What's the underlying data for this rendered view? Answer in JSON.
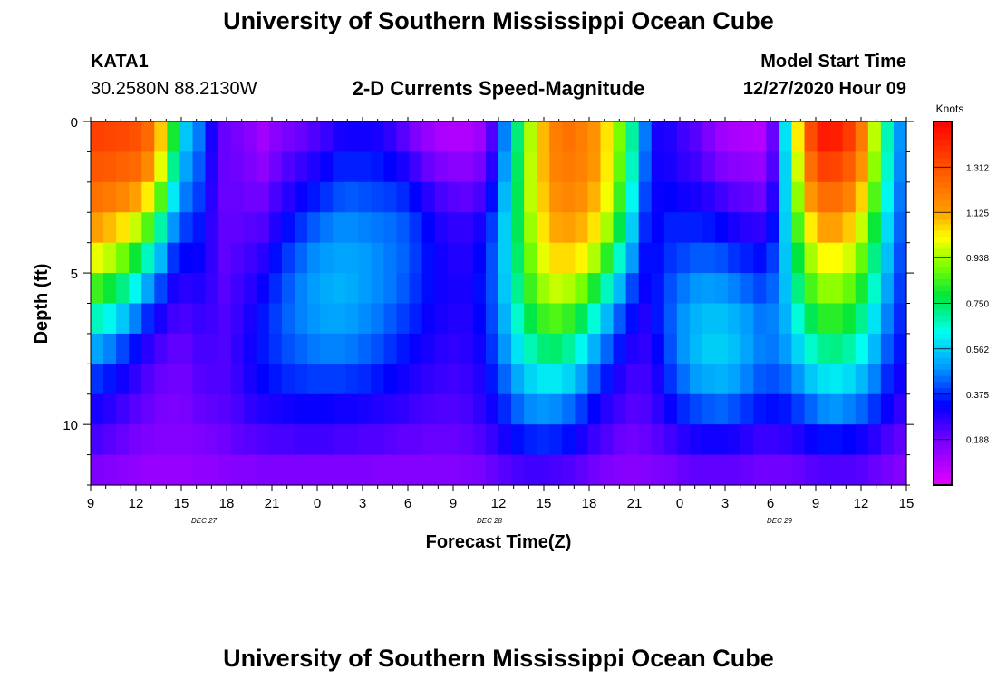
{
  "header": {
    "title": "University of Southern Mississippi Ocean Cube",
    "station_id": "KATA1",
    "station_coords": "30.2580N 88.2130W",
    "plot_title": "2-D Currents Speed-Magnitude",
    "model_label": "Model Start Time",
    "model_time": "12/27/2020 Hour 09"
  },
  "footer": {
    "title": "University of Southern Mississippi Ocean Cube"
  },
  "chart_data": {
    "type": "heatmap",
    "title": "2-D Currents Speed-Magnitude",
    "xlabel": "Forecast Time(Z)",
    "ylabel": "Depth (ft)",
    "colorbar_title": "Knots",
    "x_tick_labels": [
      "9",
      "12",
      "15",
      "18",
      "21",
      "0",
      "3",
      "6",
      "9",
      "12",
      "15",
      "18",
      "21",
      "0",
      "3",
      "6",
      "9",
      "12",
      "15"
    ],
    "x_date_labels": [
      {
        "text": "DEC  27",
        "at_tick": 2.5
      },
      {
        "text": "DEC  28",
        "at_tick": 8.8
      },
      {
        "text": "DEC  29",
        "at_tick": 15.2
      }
    ],
    "x_range_hours": [
      0,
      54
    ],
    "y_ticks": [
      0,
      5,
      10
    ],
    "ylim_ft": [
      0,
      12
    ],
    "colorbar_ticks": [
      "1.312",
      "1.125",
      "0.938",
      "0.750",
      "0.562",
      "0.375",
      "0.188"
    ],
    "colorbar_tick_values": [
      1.312,
      1.125,
      0.938,
      0.75,
      0.562,
      0.375,
      0.188
    ],
    "color_range_knots": [
      0,
      1.5
    ],
    "time_step_hours": 1,
    "depth_levels_ft": [
      0.5,
      1.5,
      2.5,
      3.5,
      4.5,
      5.5,
      6.5,
      7.5,
      8.5,
      9.5,
      10.5,
      11.5
    ],
    "speed_knots_by_depth": [
      [
        1.35,
        1.34,
        1.33,
        1.31,
        1.25,
        1.08,
        0.8,
        0.55,
        0.45,
        0.3,
        0.2,
        0.18,
        0.15,
        0.11,
        0.15,
        0.18,
        0.2,
        0.23,
        0.26,
        0.3,
        0.31,
        0.31,
        0.3,
        0.27,
        0.22,
        0.17,
        0.13,
        0.1,
        0.09,
        0.09,
        0.12,
        0.23,
        0.46,
        0.73,
        0.95,
        1.1,
        1.2,
        1.23,
        1.2,
        1.15,
        1.05,
        0.9,
        0.7,
        0.45,
        0.3,
        0.29,
        0.25,
        0.22,
        0.17,
        0.12,
        0.1,
        0.09,
        0.08,
        0.2,
        0.59,
        1.04,
        1.32,
        1.44,
        1.43,
        1.36,
        1.21,
        0.96,
        0.68,
        0.48
      ],
      [
        1.3,
        1.29,
        1.27,
        1.25,
        1.17,
        1.0,
        0.71,
        0.5,
        0.42,
        0.29,
        0.2,
        0.19,
        0.17,
        0.14,
        0.19,
        0.23,
        0.26,
        0.29,
        0.32,
        0.36,
        0.36,
        0.36,
        0.35,
        0.33,
        0.3,
        0.25,
        0.2,
        0.17,
        0.15,
        0.15,
        0.18,
        0.28,
        0.49,
        0.75,
        0.96,
        1.1,
        1.19,
        1.21,
        1.19,
        1.14,
        1.04,
        0.88,
        0.67,
        0.43,
        0.31,
        0.3,
        0.27,
        0.25,
        0.21,
        0.17,
        0.15,
        0.14,
        0.13,
        0.23,
        0.57,
        0.98,
        1.24,
        1.35,
        1.34,
        1.28,
        1.15,
        0.92,
        0.66,
        0.47
      ],
      [
        1.23,
        1.21,
        1.18,
        1.13,
        1.04,
        0.86,
        0.6,
        0.45,
        0.39,
        0.28,
        0.2,
        0.2,
        0.19,
        0.19,
        0.24,
        0.28,
        0.32,
        0.35,
        0.38,
        0.41,
        0.42,
        0.41,
        0.4,
        0.39,
        0.37,
        0.33,
        0.28,
        0.24,
        0.22,
        0.21,
        0.24,
        0.34,
        0.53,
        0.76,
        0.96,
        1.08,
        1.16,
        1.18,
        1.16,
        1.11,
        1.01,
        0.84,
        0.62,
        0.4,
        0.32,
        0.33,
        0.31,
        0.3,
        0.28,
        0.25,
        0.22,
        0.21,
        0.19,
        0.28,
        0.57,
        0.92,
        1.14,
        1.24,
        1.24,
        1.19,
        1.07,
        0.86,
        0.62,
        0.45
      ],
      [
        1.13,
        1.1,
        1.05,
        0.97,
        0.86,
        0.69,
        0.48,
        0.39,
        0.35,
        0.27,
        0.21,
        0.21,
        0.22,
        0.23,
        0.29,
        0.34,
        0.38,
        0.42,
        0.45,
        0.47,
        0.47,
        0.46,
        0.45,
        0.44,
        0.42,
        0.38,
        0.33,
        0.29,
        0.27,
        0.27,
        0.3,
        0.39,
        0.56,
        0.76,
        0.93,
        1.05,
        1.12,
        1.13,
        1.11,
        1.05,
        0.94,
        0.77,
        0.56,
        0.37,
        0.33,
        0.36,
        0.36,
        0.36,
        0.35,
        0.33,
        0.3,
        0.28,
        0.27,
        0.34,
        0.56,
        0.85,
        1.04,
        1.13,
        1.13,
        1.08,
        0.97,
        0.79,
        0.58,
        0.43
      ],
      [
        1.0,
        0.96,
        0.89,
        0.79,
        0.67,
        0.53,
        0.38,
        0.33,
        0.32,
        0.27,
        0.21,
        0.23,
        0.25,
        0.28,
        0.34,
        0.39,
        0.43,
        0.47,
        0.49,
        0.5,
        0.5,
        0.49,
        0.47,
        0.45,
        0.43,
        0.39,
        0.34,
        0.31,
        0.29,
        0.29,
        0.33,
        0.41,
        0.56,
        0.74,
        0.89,
        1.0,
        1.06,
        1.06,
        1.03,
        0.95,
        0.82,
        0.66,
        0.49,
        0.34,
        0.34,
        0.38,
        0.4,
        0.42,
        0.42,
        0.41,
        0.38,
        0.36,
        0.34,
        0.39,
        0.55,
        0.78,
        0.94,
        1.02,
        1.02,
        0.98,
        0.88,
        0.72,
        0.54,
        0.41
      ],
      [
        0.84,
        0.79,
        0.72,
        0.62,
        0.5,
        0.4,
        0.3,
        0.28,
        0.29,
        0.26,
        0.22,
        0.25,
        0.28,
        0.32,
        0.37,
        0.42,
        0.46,
        0.49,
        0.51,
        0.52,
        0.51,
        0.49,
        0.47,
        0.45,
        0.42,
        0.38,
        0.34,
        0.31,
        0.3,
        0.3,
        0.34,
        0.41,
        0.55,
        0.71,
        0.84,
        0.93,
        0.97,
        0.95,
        0.9,
        0.8,
        0.67,
        0.53,
        0.4,
        0.32,
        0.35,
        0.41,
        0.45,
        0.48,
        0.49,
        0.48,
        0.46,
        0.43,
        0.4,
        0.43,
        0.54,
        0.72,
        0.85,
        0.92,
        0.92,
        0.88,
        0.8,
        0.66,
        0.5,
        0.39
      ],
      [
        0.67,
        0.62,
        0.55,
        0.46,
        0.37,
        0.3,
        0.25,
        0.24,
        0.26,
        0.25,
        0.23,
        0.26,
        0.3,
        0.35,
        0.39,
        0.43,
        0.46,
        0.48,
        0.5,
        0.5,
        0.49,
        0.47,
        0.45,
        0.42,
        0.39,
        0.36,
        0.32,
        0.3,
        0.29,
        0.29,
        0.33,
        0.4,
        0.52,
        0.66,
        0.77,
        0.84,
        0.86,
        0.83,
        0.76,
        0.65,
        0.53,
        0.42,
        0.34,
        0.29,
        0.35,
        0.42,
        0.48,
        0.52,
        0.54,
        0.54,
        0.52,
        0.49,
        0.45,
        0.46,
        0.52,
        0.65,
        0.76,
        0.82,
        0.82,
        0.79,
        0.71,
        0.59,
        0.46,
        0.37
      ],
      [
        0.5,
        0.46,
        0.4,
        0.34,
        0.28,
        0.24,
        0.21,
        0.21,
        0.24,
        0.24,
        0.23,
        0.27,
        0.31,
        0.35,
        0.38,
        0.41,
        0.43,
        0.45,
        0.46,
        0.46,
        0.45,
        0.43,
        0.41,
        0.38,
        0.35,
        0.32,
        0.3,
        0.28,
        0.27,
        0.28,
        0.31,
        0.38,
        0.48,
        0.59,
        0.68,
        0.73,
        0.74,
        0.7,
        0.62,
        0.52,
        0.43,
        0.35,
        0.29,
        0.27,
        0.33,
        0.41,
        0.48,
        0.53,
        0.56,
        0.56,
        0.54,
        0.5,
        0.46,
        0.45,
        0.49,
        0.57,
        0.66,
        0.71,
        0.72,
        0.69,
        0.63,
        0.53,
        0.42,
        0.35
      ],
      [
        0.38,
        0.35,
        0.31,
        0.27,
        0.23,
        0.2,
        0.19,
        0.19,
        0.22,
        0.23,
        0.23,
        0.26,
        0.3,
        0.33,
        0.35,
        0.37,
        0.38,
        0.39,
        0.39,
        0.39,
        0.38,
        0.37,
        0.35,
        0.33,
        0.31,
        0.29,
        0.27,
        0.26,
        0.25,
        0.26,
        0.29,
        0.35,
        0.43,
        0.51,
        0.57,
        0.6,
        0.6,
        0.57,
        0.5,
        0.42,
        0.35,
        0.29,
        0.25,
        0.25,
        0.3,
        0.38,
        0.44,
        0.49,
        0.51,
        0.52,
        0.5,
        0.46,
        0.42,
        0.41,
        0.43,
        0.48,
        0.55,
        0.59,
        0.6,
        0.58,
        0.53,
        0.46,
        0.37,
        0.31
      ],
      [
        0.3,
        0.28,
        0.25,
        0.22,
        0.2,
        0.18,
        0.17,
        0.18,
        0.2,
        0.21,
        0.22,
        0.24,
        0.27,
        0.29,
        0.3,
        0.31,
        0.32,
        0.32,
        0.32,
        0.31,
        0.31,
        0.3,
        0.29,
        0.28,
        0.27,
        0.25,
        0.24,
        0.23,
        0.23,
        0.24,
        0.27,
        0.31,
        0.37,
        0.43,
        0.47,
        0.48,
        0.47,
        0.44,
        0.39,
        0.33,
        0.28,
        0.25,
        0.22,
        0.23,
        0.27,
        0.32,
        0.37,
        0.4,
        0.42,
        0.43,
        0.41,
        0.38,
        0.35,
        0.34,
        0.35,
        0.39,
        0.43,
        0.47,
        0.48,
        0.46,
        0.43,
        0.38,
        0.32,
        0.27
      ],
      [
        0.24,
        0.22,
        0.2,
        0.18,
        0.17,
        0.16,
        0.16,
        0.16,
        0.17,
        0.18,
        0.19,
        0.21,
        0.22,
        0.23,
        0.24,
        0.24,
        0.25,
        0.25,
        0.25,
        0.24,
        0.24,
        0.23,
        0.23,
        0.22,
        0.21,
        0.21,
        0.2,
        0.2,
        0.2,
        0.21,
        0.23,
        0.26,
        0.3,
        0.34,
        0.36,
        0.37,
        0.36,
        0.34,
        0.3,
        0.26,
        0.23,
        0.2,
        0.19,
        0.2,
        0.22,
        0.25,
        0.28,
        0.3,
        0.31,
        0.31,
        0.3,
        0.28,
        0.26,
        0.26,
        0.27,
        0.29,
        0.32,
        0.34,
        0.34,
        0.33,
        0.31,
        0.28,
        0.24,
        0.21
      ],
      [
        0.17,
        0.16,
        0.15,
        0.14,
        0.13,
        0.13,
        0.13,
        0.13,
        0.14,
        0.14,
        0.15,
        0.16,
        0.16,
        0.17,
        0.17,
        0.17,
        0.17,
        0.17,
        0.17,
        0.17,
        0.17,
        0.17,
        0.16,
        0.16,
        0.16,
        0.16,
        0.16,
        0.16,
        0.16,
        0.17,
        0.18,
        0.2,
        0.22,
        0.24,
        0.25,
        0.25,
        0.24,
        0.23,
        0.21,
        0.19,
        0.17,
        0.16,
        0.15,
        0.16,
        0.17,
        0.18,
        0.2,
        0.21,
        0.21,
        0.21,
        0.21,
        0.2,
        0.19,
        0.19,
        0.19,
        0.2,
        0.22,
        0.23,
        0.23,
        0.23,
        0.22,
        0.2,
        0.18,
        0.16
      ]
    ]
  }
}
